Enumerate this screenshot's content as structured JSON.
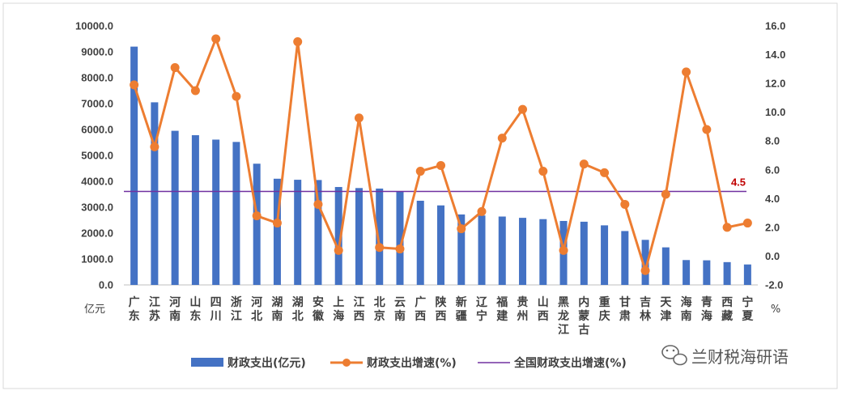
{
  "chart_data": {
    "type": "bar+line",
    "title": "",
    "categories": [
      "广东",
      "江苏",
      "河南",
      "山东",
      "四川",
      "浙江",
      "河北",
      "湖南",
      "湖北",
      "安徽",
      "上海",
      "江西",
      "北京",
      "云南",
      "广西",
      "陕西",
      "新疆",
      "辽宁",
      "福建",
      "贵州",
      "山西",
      "黑龙江",
      "内蒙古",
      "重庆",
      "甘肃",
      "吉林",
      "天津",
      "海南",
      "青海",
      "西藏",
      "宁夏"
    ],
    "series": [
      {
        "name": "财政支出(亿元)",
        "type": "bar",
        "axis": "left",
        "color": "#4472c4",
        "values": [
          9200,
          7050,
          5950,
          5780,
          5610,
          5520,
          4680,
          4100,
          4060,
          4050,
          3780,
          3740,
          3720,
          3620,
          3250,
          3070,
          2720,
          2680,
          2640,
          2590,
          2540,
          2470,
          2440,
          2300,
          2080,
          1740,
          1450,
          960,
          950,
          880,
          790
        ]
      },
      {
        "name": "财政支出增速(%)",
        "type": "line",
        "axis": "right",
        "color": "#ed7d31",
        "values": [
          11.9,
          7.6,
          13.1,
          11.5,
          15.1,
          11.1,
          2.8,
          2.3,
          14.9,
          3.6,
          0.4,
          9.6,
          0.6,
          0.5,
          5.9,
          6.3,
          1.9,
          3.1,
          8.2,
          10.2,
          5.9,
          0.4,
          6.4,
          5.8,
          3.6,
          -1.0,
          4.3,
          12.8,
          8.8,
          2.0,
          2.3
        ]
      },
      {
        "name": "全国财政支出增速(%)",
        "type": "reference-line",
        "axis": "right",
        "color": "#7030a0",
        "value": 4.5,
        "value_label": "4.5"
      }
    ],
    "y_left": {
      "unit": "亿元",
      "min": 0,
      "max": 10000,
      "step": 1000,
      "tick_labels": [
        "0.0",
        "1000.0",
        "2000.0",
        "3000.0",
        "4000.0",
        "5000.0",
        "6000.0",
        "7000.0",
        "8000.0",
        "9000.0",
        "10000.0"
      ]
    },
    "y_right": {
      "unit": "%",
      "min": -2,
      "max": 16,
      "step": 2,
      "tick_labels": [
        "-2.0",
        "0.0",
        "2.0",
        "4.0",
        "6.0",
        "8.0",
        "10.0",
        "12.0",
        "14.0",
        "16.0"
      ]
    },
    "grid": false,
    "legend_position": "bottom"
  },
  "watermark": {
    "icon": "wechat-icon",
    "text": "兰财税海研语"
  }
}
